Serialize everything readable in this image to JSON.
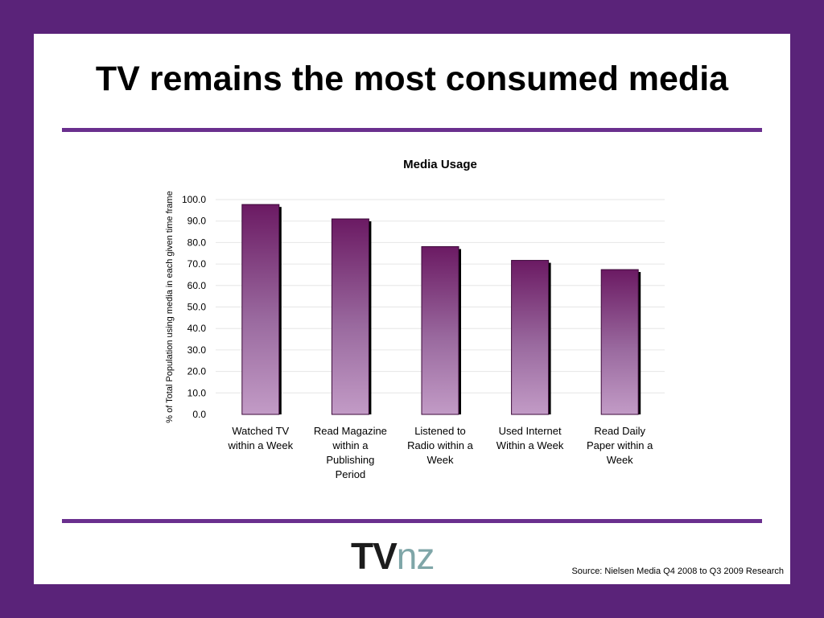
{
  "slide": {
    "title": "TV remains the most consumed media",
    "source": "Source: Nielsen Media Q4 2008 to Q3 2009 Research",
    "logo": {
      "part1": "TV",
      "part2": "nz"
    },
    "colors": {
      "frame": "#5a2379",
      "rule": "#6a2f8e",
      "bar_top": "#6b1a63",
      "bar_bottom": "#c29bc6"
    }
  },
  "chart_data": {
    "type": "bar",
    "title": "Media Usage",
    "ylabel": "% of Total Population using media in each given time frame",
    "xlabel": "",
    "categories": [
      [
        "Watched TV",
        "within a Week"
      ],
      [
        "Read Magazine",
        "within a",
        "Publishing",
        "Period"
      ],
      [
        "Listened to",
        "Radio within a",
        "Week"
      ],
      [
        "Used Internet",
        "Within a Week"
      ],
      [
        "Read Daily",
        "Paper within a",
        "Week"
      ]
    ],
    "values": [
      97.7,
      91.0,
      78.1,
      71.7,
      67.4
    ],
    "ylim": [
      0,
      100
    ],
    "yticks": [
      "0.0",
      "10.0",
      "20.0",
      "30.0",
      "40.0",
      "50.0",
      "60.0",
      "70.0",
      "80.0",
      "90.0",
      "100.0"
    ],
    "grid": true,
    "legend": "none"
  }
}
